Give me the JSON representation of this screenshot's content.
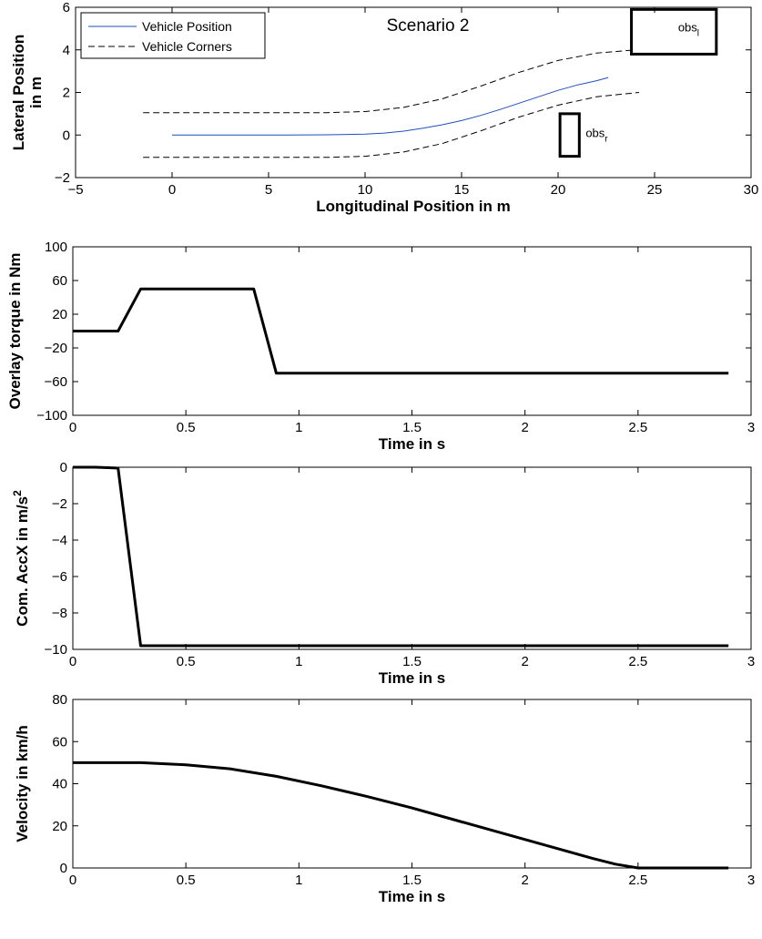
{
  "chart_data": [
    {
      "type": "line",
      "title": "Scenario 2",
      "xlabel": "Longitudinal Position in m",
      "ylabel": [
        "Lateral Position",
        "in m"
      ],
      "xlim": [
        -5,
        30
      ],
      "ylim": [
        -2,
        6
      ],
      "xticks": [
        -5,
        0,
        5,
        10,
        15,
        20,
        25,
        30
      ],
      "yticks": [
        -2,
        0,
        2,
        4,
        6
      ],
      "grid": false,
      "legend_position": "top-left",
      "series": [
        {
          "name": "Vehicle Position",
          "style": "solid",
          "color": "#1f4fbf",
          "x": [
            0,
            2,
            4,
            6,
            8,
            10,
            11,
            12,
            13,
            14,
            15,
            16,
            17,
            18,
            19,
            20,
            21,
            22,
            22.6
          ],
          "y": [
            0,
            0,
            0,
            0,
            0.01,
            0.04,
            0.09,
            0.18,
            0.32,
            0.48,
            0.68,
            0.92,
            1.2,
            1.5,
            1.8,
            2.1,
            2.35,
            2.55,
            2.7
          ]
        },
        {
          "name": "Vehicle Corners",
          "style": "dashed",
          "color": "#000000",
          "x": [
            -1.5,
            2,
            6,
            8,
            10,
            12,
            14,
            16,
            18,
            20,
            22,
            24
          ],
          "y": [
            1.05,
            1.05,
            1.05,
            1.05,
            1.1,
            1.3,
            1.7,
            2.3,
            2.95,
            3.5,
            3.85,
            4.0
          ]
        },
        {
          "style": "dashed",
          "color": "#000000",
          "x": [
            -1.5,
            2,
            6,
            8,
            10,
            12,
            14,
            16,
            18,
            20,
            22,
            24.2
          ],
          "y": [
            -1.05,
            -1.05,
            -1.05,
            -1.05,
            -1.0,
            -0.8,
            -0.4,
            0.2,
            0.85,
            1.4,
            1.8,
            2.0
          ]
        }
      ],
      "obstacles": [
        {
          "label": "obs",
          "subscript": "l",
          "x": [
            23.8,
            28.2
          ],
          "y": [
            3.8,
            5.9
          ]
        },
        {
          "label": "obs",
          "subscript": "r",
          "x": [
            20.1,
            21.1
          ],
          "y": [
            -1.0,
            1.0
          ]
        }
      ]
    },
    {
      "type": "line",
      "title": "",
      "xlabel": "Time in s",
      "ylabel": [
        "Overlay torque in Nm"
      ],
      "xlim": [
        0,
        3
      ],
      "ylim": [
        -100,
        100
      ],
      "xticks": [
        0,
        0.5,
        1,
        1.5,
        2,
        2.5,
        3
      ],
      "yticks": [
        -100,
        -60,
        -20,
        20,
        60,
        100
      ],
      "grid": false,
      "series": [
        {
          "style": "solid",
          "color": "#000000",
          "x": [
            0,
            0.2,
            0.3,
            0.8,
            0.9,
            2.9
          ],
          "y": [
            0,
            0,
            50,
            50,
            -50,
            -50
          ]
        }
      ]
    },
    {
      "type": "line",
      "title": "",
      "xlabel": "Time in s",
      "ylabel": [
        "Com. AccX in m/s",
        "2"
      ],
      "xlim": [
        0,
        3
      ],
      "ylim": [
        -10,
        0
      ],
      "xticks": [
        0,
        0.5,
        1,
        1.5,
        2,
        2.5,
        3
      ],
      "yticks": [
        -10,
        -8,
        -6,
        -4,
        -2,
        0
      ],
      "grid": false,
      "series": [
        {
          "style": "solid",
          "color": "#000000",
          "x": [
            0,
            0.1,
            0.2,
            0.3,
            2.9
          ],
          "y": [
            0,
            0,
            -0.05,
            -9.8,
            -9.8
          ]
        }
      ]
    },
    {
      "type": "line",
      "title": "",
      "xlabel": "Time in s",
      "ylabel": [
        "Velocity in km/h"
      ],
      "xlim": [
        0,
        3
      ],
      "ylim": [
        0,
        80
      ],
      "xticks": [
        0,
        0.5,
        1,
        1.5,
        2,
        2.5,
        3
      ],
      "yticks": [
        0,
        20,
        40,
        60,
        80
      ],
      "grid": false,
      "series": [
        {
          "style": "solid",
          "color": "#000000",
          "x": [
            0,
            0.3,
            0.5,
            0.7,
            0.9,
            1.1,
            1.3,
            1.5,
            1.7,
            1.9,
            2.1,
            2.3,
            2.4,
            2.5,
            2.9
          ],
          "y": [
            50,
            50,
            49,
            47,
            43.5,
            39,
            34,
            28.5,
            22.5,
            16.5,
            10.5,
            4.5,
            1.8,
            0,
            0
          ]
        }
      ]
    }
  ]
}
